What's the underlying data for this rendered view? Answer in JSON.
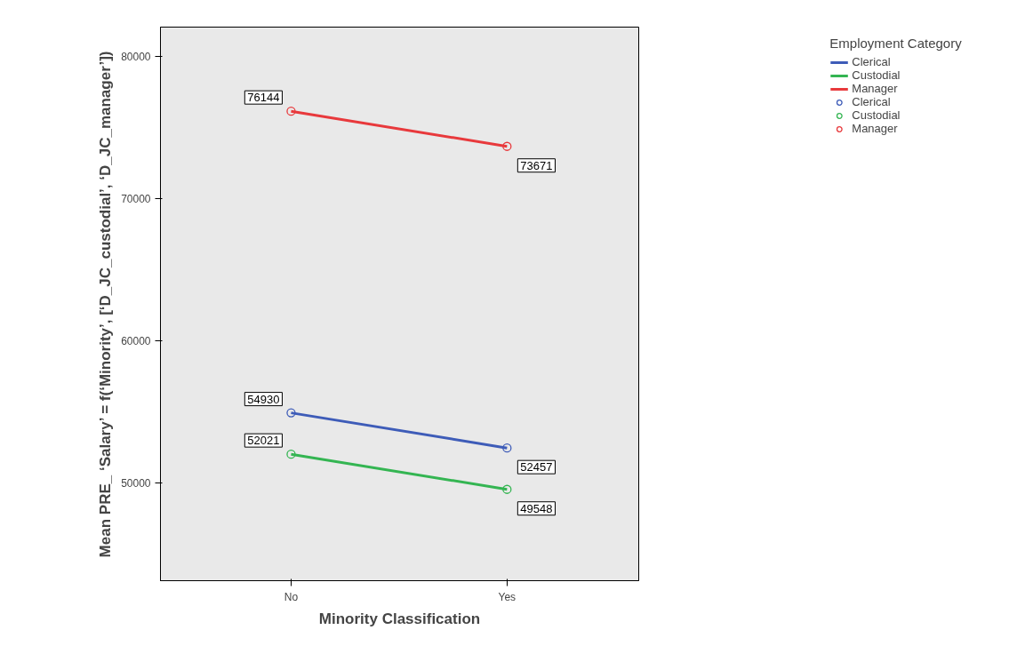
{
  "chart_data": {
    "type": "line",
    "xlabel": "Minority Classification",
    "ylabel": "Mean PRE_ ‘Salary’ = f(‘Minority’, [‘D_JC_custodial’, ‘D_JC_manager’])",
    "legend_title": "Employment Category",
    "categories": [
      "No",
      "Yes"
    ],
    "series": [
      {
        "name": "Clerical",
        "color": "#3e5cb8",
        "values": [
          54930,
          52457
        ]
      },
      {
        "name": "Custodial",
        "color": "#34b552",
        "values": [
          52021,
          49548
        ]
      },
      {
        "name": "Manager",
        "color": "#e8393c",
        "values": [
          76144,
          73671
        ]
      }
    ],
    "ylim": [
      43125,
      82060
    ],
    "yticks": [
      50000,
      60000,
      70000,
      80000
    ],
    "grid": false,
    "legend": "right",
    "marker": "circle",
    "line_style": "solid",
    "data_labels": true
  }
}
